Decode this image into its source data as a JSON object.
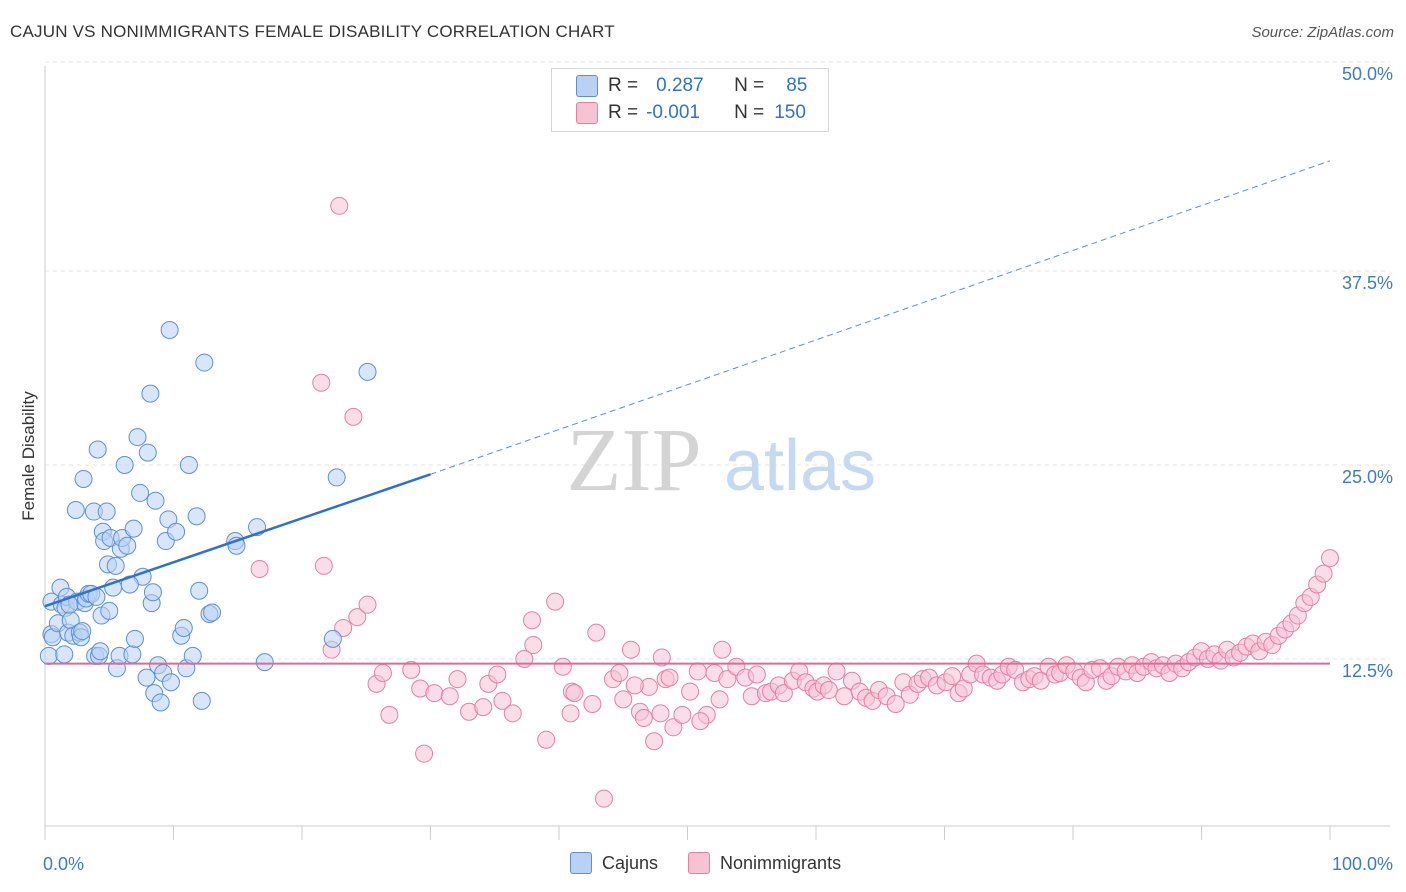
{
  "title": "CAJUN VS NONIMMIGRANTS FEMALE DISABILITY CORRELATION CHART",
  "source": "Source: ZipAtlas.com",
  "watermark": {
    "zip": "ZIP",
    "atlas": "atlas"
  },
  "colors": {
    "blue": "#5b8fd6",
    "blue_fill": "#b9d2f4",
    "blue_line": "#2f72cc",
    "pink": "#e87ea1",
    "pink_fill": "#f6c3d3",
    "pink_line": "#e06a92",
    "axis_label": "#3d7ac7"
  },
  "legend": {
    "rows": [
      {
        "r_label": "R =",
        "r_value": "0.287",
        "n_label": "N =",
        "n_value": "85"
      },
      {
        "r_label": "R =",
        "r_value": "-0.001",
        "n_label": "N =",
        "n_value": "150"
      }
    ]
  },
  "bottom_legend": [
    "Cajuns",
    "Nonimmigrants"
  ],
  "chart_data": {
    "type": "scatter",
    "title": "CAJUN VS NONIMMIGRANTS FEMALE DISABILITY CORRELATION CHART",
    "xlabel": "",
    "ylabel": "Female Disability",
    "x_tick_labels": [
      "0.0%",
      "100.0%"
    ],
    "y_tick_labels": [
      "12.5%",
      "25.0%",
      "37.5%",
      "50.0%"
    ],
    "xlim": [
      0,
      100
    ],
    "ylim": [
      0,
      50
    ],
    "grid": "horizontal dashed",
    "legend_position": "top-center",
    "series": [
      {
        "name": "Cajuns",
        "r": 0.287,
        "n": 85,
        "trend": {
          "x0": 0,
          "y0": 15.9,
          "x1": 30,
          "y1": 24.4,
          "dashed_to": {
            "x": 100,
            "y": 44.6
          }
        },
        "points": [
          [
            0.3,
            12.7
          ],
          [
            0.5,
            16.2
          ],
          [
            0.5,
            14.1
          ],
          [
            0.6,
            13.9
          ],
          [
            1.0,
            14.8
          ],
          [
            1.2,
            17.1
          ],
          [
            1.3,
            16.0
          ],
          [
            1.5,
            12.8
          ],
          [
            1.6,
            15.8
          ],
          [
            1.7,
            16.5
          ],
          [
            1.8,
            14.2
          ],
          [
            2.0,
            15.0
          ],
          [
            2.2,
            14.0
          ],
          [
            2.4,
            22.1
          ],
          [
            2.5,
            16.2
          ],
          [
            2.7,
            14.2
          ],
          [
            2.8,
            13.9
          ],
          [
            3.0,
            24.1
          ],
          [
            3.1,
            16.1
          ],
          [
            3.2,
            16.4
          ],
          [
            3.4,
            16.7
          ],
          [
            3.6,
            16.7
          ],
          [
            3.8,
            22.0
          ],
          [
            3.9,
            12.7
          ],
          [
            4.1,
            26.0
          ],
          [
            4.2,
            12.7
          ],
          [
            4.3,
            13.0
          ],
          [
            4.4,
            15.3
          ],
          [
            4.5,
            20.7
          ],
          [
            4.6,
            20.1
          ],
          [
            4.8,
            22.0
          ],
          [
            4.9,
            18.6
          ],
          [
            5.1,
            20.3
          ],
          [
            5.3,
            17.1
          ],
          [
            5.5,
            18.5
          ],
          [
            5.6,
            11.9
          ],
          [
            5.8,
            12.7
          ],
          [
            5.9,
            19.6
          ],
          [
            6.0,
            20.3
          ],
          [
            6.2,
            25.0
          ],
          [
            6.4,
            19.8
          ],
          [
            6.8,
            12.8
          ],
          [
            6.9,
            20.9
          ],
          [
            7.0,
            13.8
          ],
          [
            7.2,
            26.8
          ],
          [
            7.4,
            23.2
          ],
          [
            7.6,
            17.8
          ],
          [
            7.9,
            11.3
          ],
          [
            8.0,
            25.8
          ],
          [
            8.2,
            29.6
          ],
          [
            8.3,
            16.1
          ],
          [
            8.4,
            16.8
          ],
          [
            8.5,
            10.3
          ],
          [
            8.6,
            22.7
          ],
          [
            8.8,
            12.1
          ],
          [
            9.0,
            9.7
          ],
          [
            9.2,
            11.6
          ],
          [
            9.4,
            20.1
          ],
          [
            9.6,
            21.5
          ],
          [
            9.7,
            33.7
          ],
          [
            9.8,
            11.0
          ],
          [
            10.2,
            20.7
          ],
          [
            10.6,
            14.0
          ],
          [
            10.8,
            14.5
          ],
          [
            11.0,
            11.9
          ],
          [
            11.2,
            25.0
          ],
          [
            11.5,
            12.7
          ],
          [
            11.8,
            21.7
          ],
          [
            12.0,
            16.9
          ],
          [
            12.2,
            9.8
          ],
          [
            12.4,
            31.6
          ],
          [
            12.8,
            15.4
          ],
          [
            13.0,
            15.5
          ],
          [
            14.8,
            20.1
          ],
          [
            14.9,
            19.8
          ],
          [
            16.5,
            21.0
          ],
          [
            17.1,
            12.3
          ],
          [
            22.4,
            13.8
          ],
          [
            22.7,
            24.2
          ],
          [
            25.1,
            31.0
          ],
          [
            4.0,
            16.5
          ],
          [
            6.6,
            17.3
          ],
          [
            2.9,
            14.3
          ],
          [
            5.0,
            15.6
          ],
          [
            1.9,
            16.0
          ]
        ]
      },
      {
        "name": "Nonimmigrants",
        "r": -0.001,
        "n": 150,
        "trend": {
          "x0": 0,
          "y0": 12.2,
          "x1": 100,
          "y1": 12.2
        },
        "points": [
          [
            22.9,
            41.7
          ],
          [
            21.5,
            30.3
          ],
          [
            24.0,
            28.1
          ],
          [
            16.7,
            18.3
          ],
          [
            21.7,
            18.5
          ],
          [
            24.3,
            15.2
          ],
          [
            25.1,
            16.0
          ],
          [
            23.2,
            14.5
          ],
          [
            25.8,
            10.9
          ],
          [
            22.3,
            13.1
          ],
          [
            26.8,
            8.9
          ],
          [
            28.5,
            11.8
          ],
          [
            29.2,
            10.6
          ],
          [
            29.5,
            6.4
          ],
          [
            30.3,
            10.3
          ],
          [
            31.5,
            10.1
          ],
          [
            33.0,
            9.1
          ],
          [
            34.1,
            9.4
          ],
          [
            34.5,
            10.9
          ],
          [
            35.2,
            11.5
          ],
          [
            35.6,
            9.8
          ],
          [
            36.4,
            9.0
          ],
          [
            37.3,
            12.5
          ],
          [
            37.9,
            15.0
          ],
          [
            38.0,
            13.4
          ],
          [
            39.0,
            7.3
          ],
          [
            39.7,
            16.2
          ],
          [
            40.3,
            12.0
          ],
          [
            41.0,
            10.4
          ],
          [
            41.2,
            10.3
          ],
          [
            42.6,
            9.6
          ],
          [
            42.9,
            14.2
          ],
          [
            43.5,
            3.5
          ],
          [
            44.2,
            11.2
          ],
          [
            44.7,
            11.6
          ],
          [
            45.0,
            9.9
          ],
          [
            45.6,
            13.1
          ],
          [
            46.3,
            9.1
          ],
          [
            46.6,
            8.7
          ],
          [
            47.0,
            10.7
          ],
          [
            47.4,
            7.2
          ],
          [
            47.9,
            9.0
          ],
          [
            48.3,
            11.2
          ],
          [
            48.6,
            11.3
          ],
          [
            48.9,
            8.1
          ],
          [
            49.6,
            8.9
          ],
          [
            50.2,
            10.4
          ],
          [
            50.8,
            11.7
          ],
          [
            51.5,
            8.9
          ],
          [
            52.1,
            11.6
          ],
          [
            52.5,
            9.9
          ],
          [
            52.7,
            13.1
          ],
          [
            53.1,
            11.2
          ],
          [
            53.8,
            12.0
          ],
          [
            54.5,
            11.3
          ],
          [
            55.0,
            10.1
          ],
          [
            55.4,
            11.5
          ],
          [
            56.1,
            10.3
          ],
          [
            56.5,
            10.4
          ],
          [
            57.1,
            10.8
          ],
          [
            57.5,
            10.3
          ],
          [
            58.2,
            11.1
          ],
          [
            58.7,
            11.7
          ],
          [
            59.2,
            11.0
          ],
          [
            59.8,
            10.6
          ],
          [
            60.1,
            10.4
          ],
          [
            60.6,
            10.8
          ],
          [
            61.0,
            10.5
          ],
          [
            61.6,
            11.7
          ],
          [
            62.2,
            10.1
          ],
          [
            62.8,
            11.1
          ],
          [
            63.4,
            10.4
          ],
          [
            63.9,
            10.0
          ],
          [
            64.4,
            9.8
          ],
          [
            64.9,
            10.5
          ],
          [
            65.5,
            10.1
          ],
          [
            66.2,
            9.6
          ],
          [
            66.8,
            11.0
          ],
          [
            67.3,
            10.2
          ],
          [
            67.9,
            10.9
          ],
          [
            68.3,
            11.2
          ],
          [
            68.8,
            11.3
          ],
          [
            69.4,
            10.8
          ],
          [
            70.1,
            11.0
          ],
          [
            70.6,
            11.4
          ],
          [
            71.1,
            10.3
          ],
          [
            71.5,
            10.6
          ],
          [
            72.0,
            11.5
          ],
          [
            72.5,
            12.2
          ],
          [
            73.0,
            11.5
          ],
          [
            73.6,
            11.3
          ],
          [
            74.1,
            11.1
          ],
          [
            74.5,
            11.5
          ],
          [
            75.0,
            12.0
          ],
          [
            75.5,
            11.8
          ],
          [
            76.1,
            11.0
          ],
          [
            76.6,
            11.2
          ],
          [
            77.0,
            11.4
          ],
          [
            77.5,
            11.1
          ],
          [
            78.1,
            12.0
          ],
          [
            78.6,
            11.5
          ],
          [
            79.0,
            11.6
          ],
          [
            79.5,
            12.1
          ],
          [
            80.1,
            11.7
          ],
          [
            80.6,
            11.3
          ],
          [
            81.0,
            11.0
          ],
          [
            81.5,
            11.8
          ],
          [
            82.1,
            11.9
          ],
          [
            82.6,
            11.1
          ],
          [
            83.0,
            11.4
          ],
          [
            83.5,
            12.0
          ],
          [
            84.1,
            11.7
          ],
          [
            84.6,
            12.1
          ],
          [
            85.0,
            11.6
          ],
          [
            85.5,
            12.0
          ],
          [
            86.1,
            12.3
          ],
          [
            86.5,
            11.9
          ],
          [
            87.0,
            12.1
          ],
          [
            87.5,
            11.6
          ],
          [
            88.0,
            12.2
          ],
          [
            88.5,
            11.9
          ],
          [
            89.0,
            12.3
          ],
          [
            89.5,
            12.6
          ],
          [
            90.0,
            13.0
          ],
          [
            90.5,
            12.5
          ],
          [
            91.0,
            12.8
          ],
          [
            91.5,
            12.4
          ],
          [
            92.0,
            13.1
          ],
          [
            92.5,
            12.6
          ],
          [
            93.0,
            12.9
          ],
          [
            93.5,
            13.3
          ],
          [
            94.0,
            13.5
          ],
          [
            94.5,
            13.0
          ],
          [
            95.0,
            13.6
          ],
          [
            95.5,
            13.4
          ],
          [
            96.0,
            14.0
          ],
          [
            96.5,
            14.4
          ],
          [
            97.0,
            14.8
          ],
          [
            97.5,
            15.3
          ],
          [
            98.0,
            16.1
          ],
          [
            98.5,
            16.5
          ],
          [
            99.0,
            17.3
          ],
          [
            99.5,
            18.0
          ],
          [
            100.0,
            19.0
          ],
          [
            26.3,
            11.6
          ],
          [
            32.1,
            11.2
          ],
          [
            40.9,
            9.0
          ],
          [
            45.9,
            10.8
          ],
          [
            48.0,
            12.6
          ],
          [
            51.0,
            8.5
          ]
        ]
      }
    ]
  }
}
